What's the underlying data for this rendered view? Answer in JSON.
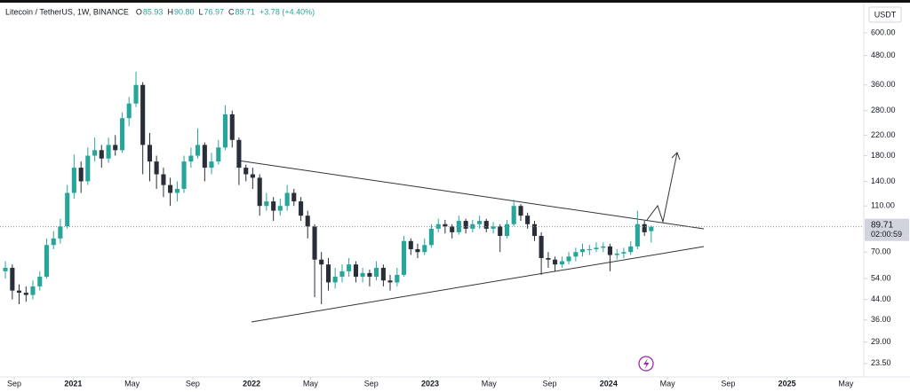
{
  "chart_data": {
    "type": "candlestick",
    "title": "Litecoin / TetherUS, 1W, BINANCE",
    "ohlc": [
      {
        "key": "O",
        "text": "85.93"
      },
      {
        "key": "H",
        "text": "90.80"
      },
      {
        "key": "L",
        "text": "76.97"
      },
      {
        "key": "C",
        "text": "89.71"
      }
    ],
    "change": "+3.78 (+4.40%)",
    "currency": "USDT",
    "last_price": {
      "value": 89.71,
      "label": "89.71"
    },
    "countdown": "02:00:59",
    "up_color": "#26a69a",
    "down_color": "#2a2e39",
    "log_scale": true,
    "grid": false,
    "xlim": [
      2020.59,
      2025.43
    ],
    "ylim": [
      20.6,
      806
    ],
    "xticks": [
      {
        "value": 2020.67,
        "label": "Sep"
      },
      2021,
      {
        "value": 2021.33,
        "label": "May"
      },
      {
        "value": 2021.67,
        "label": "Sep"
      },
      2022,
      {
        "value": 2022.33,
        "label": "May"
      },
      {
        "value": 2022.67,
        "label": "Sep"
      },
      2023,
      {
        "value": 2023.33,
        "label": "May"
      },
      {
        "value": 2023.67,
        "label": "Sep"
      },
      2024,
      {
        "value": 2024.33,
        "label": "May"
      },
      {
        "value": 2024.67,
        "label": "Sep"
      },
      2025,
      {
        "value": 2025.33,
        "label": "May"
      }
    ],
    "yticks": [
      {
        "value": 600,
        "label": "600.00"
      },
      {
        "value": 480,
        "label": "480.00"
      },
      {
        "value": 360,
        "label": "360.00"
      },
      {
        "value": 280,
        "label": "280.00"
      },
      {
        "value": 220,
        "label": "220.00"
      },
      {
        "value": 180,
        "label": "180.00"
      },
      {
        "value": 140,
        "label": "140.00"
      },
      {
        "value": 110,
        "label": "110.00"
      },
      {
        "value": 70,
        "label": "70.00"
      },
      {
        "value": 54,
        "label": "54.00"
      },
      {
        "value": 44,
        "label": "44.00"
      },
      {
        "value": 36,
        "label": "36.00"
      },
      {
        "value": 29,
        "label": "29.00"
      },
      {
        "value": 23.5,
        "label": "23.50"
      }
    ],
    "x": [
      2020.62,
      2020.659,
      2020.697,
      2020.736,
      2020.774,
      2020.813,
      2020.851,
      2020.89,
      2020.928,
      2020.967,
      2021.005,
      2021.044,
      2021.082,
      2021.121,
      2021.159,
      2021.198,
      2021.236,
      2021.275,
      2021.313,
      2021.352,
      2021.39,
      2021.429,
      2021.467,
      2021.506,
      2021.544,
      2021.583,
      2021.621,
      2021.66,
      2021.698,
      2021.737,
      2021.775,
      2021.814,
      2021.852,
      2021.891,
      2021.929,
      2021.968,
      2022.006,
      2022.045,
      2022.083,
      2022.122,
      2022.16,
      2022.199,
      2022.237,
      2022.276,
      2022.314,
      2022.353,
      2022.391,
      2022.43,
      2022.468,
      2022.507,
      2022.545,
      2022.584,
      2022.622,
      2022.661,
      2022.699,
      2022.738,
      2022.776,
      2022.815,
      2022.853,
      2022.892,
      2022.93,
      2022.969,
      2023.007,
      2023.046,
      2023.084,
      2023.123,
      2023.161,
      2023.2,
      2023.238,
      2023.277,
      2023.315,
      2023.354,
      2023.392,
      2023.431,
      2023.469,
      2023.508,
      2023.546,
      2023.585,
      2023.623,
      2023.662,
      2023.7,
      2023.739,
      2023.777,
      2023.816,
      2023.854,
      2023.893,
      2023.931,
      2023.97,
      2024.008,
      2024.047,
      2024.085,
      2024.124,
      2024.162,
      2024.201,
      2024.239
    ],
    "open": [
      58,
      60,
      48,
      47,
      46,
      50,
      55,
      75,
      80,
      90,
      125,
      160,
      140,
      180,
      190,
      175,
      200,
      190,
      260,
      300,
      360,
      200,
      170,
      150,
      135,
      125,
      130,
      170,
      180,
      200,
      160,
      170,
      195,
      270,
      210,
      160,
      150,
      145,
      110,
      115,
      105,
      110,
      125,
      115,
      100,
      90,
      65,
      62,
      52,
      55,
      58,
      62,
      55,
      57,
      55,
      60,
      53,
      52,
      56,
      78,
      72,
      70,
      75,
      88,
      92,
      90,
      85,
      95,
      88,
      92,
      95,
      88,
      90,
      82,
      92,
      110,
      100,
      92,
      82,
      66,
      65,
      62,
      64,
      67,
      70,
      72,
      72,
      73,
      74,
      68,
      69,
      70,
      74,
      92,
      85.93
    ],
    "high": [
      64,
      62,
      51,
      50,
      53,
      58,
      80,
      86,
      97,
      135,
      182,
      170,
      195,
      215,
      200,
      215,
      220,
      275,
      320,
      410,
      370,
      225,
      180,
      160,
      145,
      140,
      180,
      195,
      235,
      205,
      185,
      210,
      295,
      280,
      215,
      165,
      160,
      150,
      125,
      120,
      118,
      135,
      130,
      120,
      105,
      92,
      70,
      66,
      60,
      62,
      66,
      64,
      60,
      59,
      64,
      62,
      56,
      60,
      82,
      80,
      76,
      80,
      92,
      97,
      96,
      92,
      100,
      97,
      96,
      100,
      97,
      94,
      92,
      96,
      117,
      112,
      103,
      95,
      85,
      70,
      67,
      67,
      70,
      73,
      76,
      75,
      77,
      77,
      76,
      72,
      73,
      78,
      105,
      95,
      90.8
    ],
    "low": [
      54,
      44,
      42,
      43,
      44,
      48,
      54,
      72,
      76,
      88,
      118,
      125,
      135,
      170,
      160,
      168,
      180,
      185,
      240,
      290,
      150,
      140,
      130,
      120,
      110,
      115,
      125,
      160,
      175,
      140,
      150,
      165,
      190,
      195,
      135,
      140,
      130,
      100,
      105,
      95,
      100,
      105,
      110,
      95,
      80,
      45,
      42,
      48,
      49,
      52,
      55,
      52,
      52,
      50,
      53,
      50,
      48,
      50,
      55,
      68,
      66,
      68,
      73,
      85,
      84,
      80,
      83,
      84,
      85,
      88,
      85,
      84,
      70,
      80,
      90,
      95,
      88,
      78,
      56,
      60,
      58,
      60,
      62,
      64,
      67,
      68,
      70,
      70,
      58,
      65,
      66,
      68,
      72,
      82,
      76.97
    ],
    "close": [
      60,
      48,
      47,
      46,
      50,
      55,
      75,
      80,
      90,
      125,
      160,
      140,
      180,
      190,
      175,
      200,
      190,
      260,
      300,
      360,
      200,
      170,
      150,
      135,
      125,
      130,
      170,
      180,
      200,
      160,
      170,
      195,
      270,
      210,
      160,
      150,
      145,
      110,
      115,
      105,
      110,
      125,
      115,
      100,
      90,
      65,
      62,
      52,
      55,
      58,
      62,
      55,
      57,
      55,
      60,
      53,
      52,
      56,
      78,
      72,
      70,
      75,
      88,
      92,
      90,
      85,
      95,
      88,
      92,
      95,
      88,
      90,
      82,
      92,
      110,
      100,
      92,
      82,
      66,
      65,
      62,
      64,
      67,
      70,
      72,
      72,
      73,
      74,
      68,
      69,
      70,
      74,
      92,
      85,
      89.71
    ]
  }
}
